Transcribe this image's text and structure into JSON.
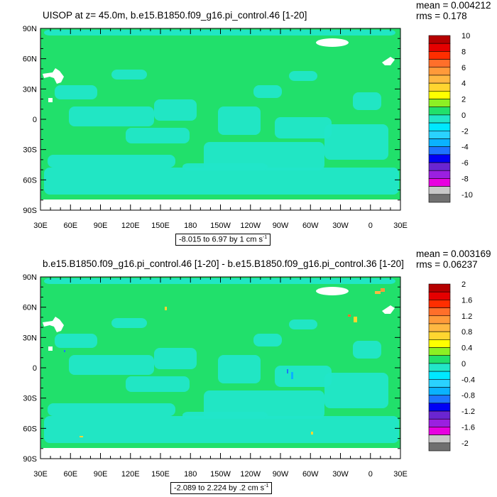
{
  "chart_data": [
    {
      "type": "heatmap",
      "title": "UISOP at z=  45.0m, b.e15.B1850.f09_g16.pi_control.46 [1-20]",
      "stats": {
        "mean": "mean = 0.004212",
        "rms": "rms = 0.178"
      },
      "y_ticks": [
        "90N",
        "60N",
        "30N",
        "0",
        "30S",
        "60S",
        "90S"
      ],
      "x_ticks": [
        "30E",
        "60E",
        "90E",
        "120E",
        "150E",
        "180",
        "150W",
        "120W",
        "90W",
        "60W",
        "30W",
        "0",
        "30E"
      ],
      "range_label": "-8.015 to 6.97 by 1 cm s",
      "range_unit_sup": "-1",
      "colorbar_labels": [
        "10",
        "8",
        "6",
        "4",
        "2",
        "0",
        "-2",
        "-4",
        "-6",
        "-8",
        "-10"
      ]
    },
    {
      "type": "heatmap",
      "title": "b.e15.B1850.f09_g16.pi_control.46 [1-20] - b.e15.B1850.f09_g16.pi_control.36 [1-20]",
      "stats": {
        "mean": "mean = 0.003169",
        "rms": "rms = 0.06237"
      },
      "y_ticks": [
        "90N",
        "60N",
        "30N",
        "0",
        "30S",
        "60S",
        "90S"
      ],
      "x_ticks": [
        "30E",
        "60E",
        "90E",
        "120E",
        "150E",
        "180",
        "150W",
        "120W",
        "90W",
        "60W",
        "30W",
        "0",
        "30E"
      ],
      "range_label": "-2.089 to 2.224 by .2 cm s",
      "range_unit_sup": "-1",
      "colorbar_labels": [
        "2",
        "1.6",
        "1.2",
        "0.8",
        "0.4",
        "0",
        "-0.4",
        "-0.8",
        "-1.2",
        "-1.6",
        "-2"
      ]
    }
  ],
  "colors": {
    "field_main": "#21e06b",
    "field_secondary": "#22e6c9",
    "land": "#ffffff",
    "colorbar": [
      "#b50000",
      "#e50000",
      "#ff2e00",
      "#ff6f2a",
      "#ff9a3a",
      "#ffb842",
      "#ffd530",
      "#ffff00",
      "#8cf024",
      "#21e06b",
      "#22e6c9",
      "#00e8ff",
      "#2ad2ff",
      "#0ab2ff",
      "#1e74ff",
      "#0000f5",
      "#6a25d1",
      "#9b20e0",
      "#e800e0",
      "#c8c8c8",
      "#707070"
    ]
  }
}
